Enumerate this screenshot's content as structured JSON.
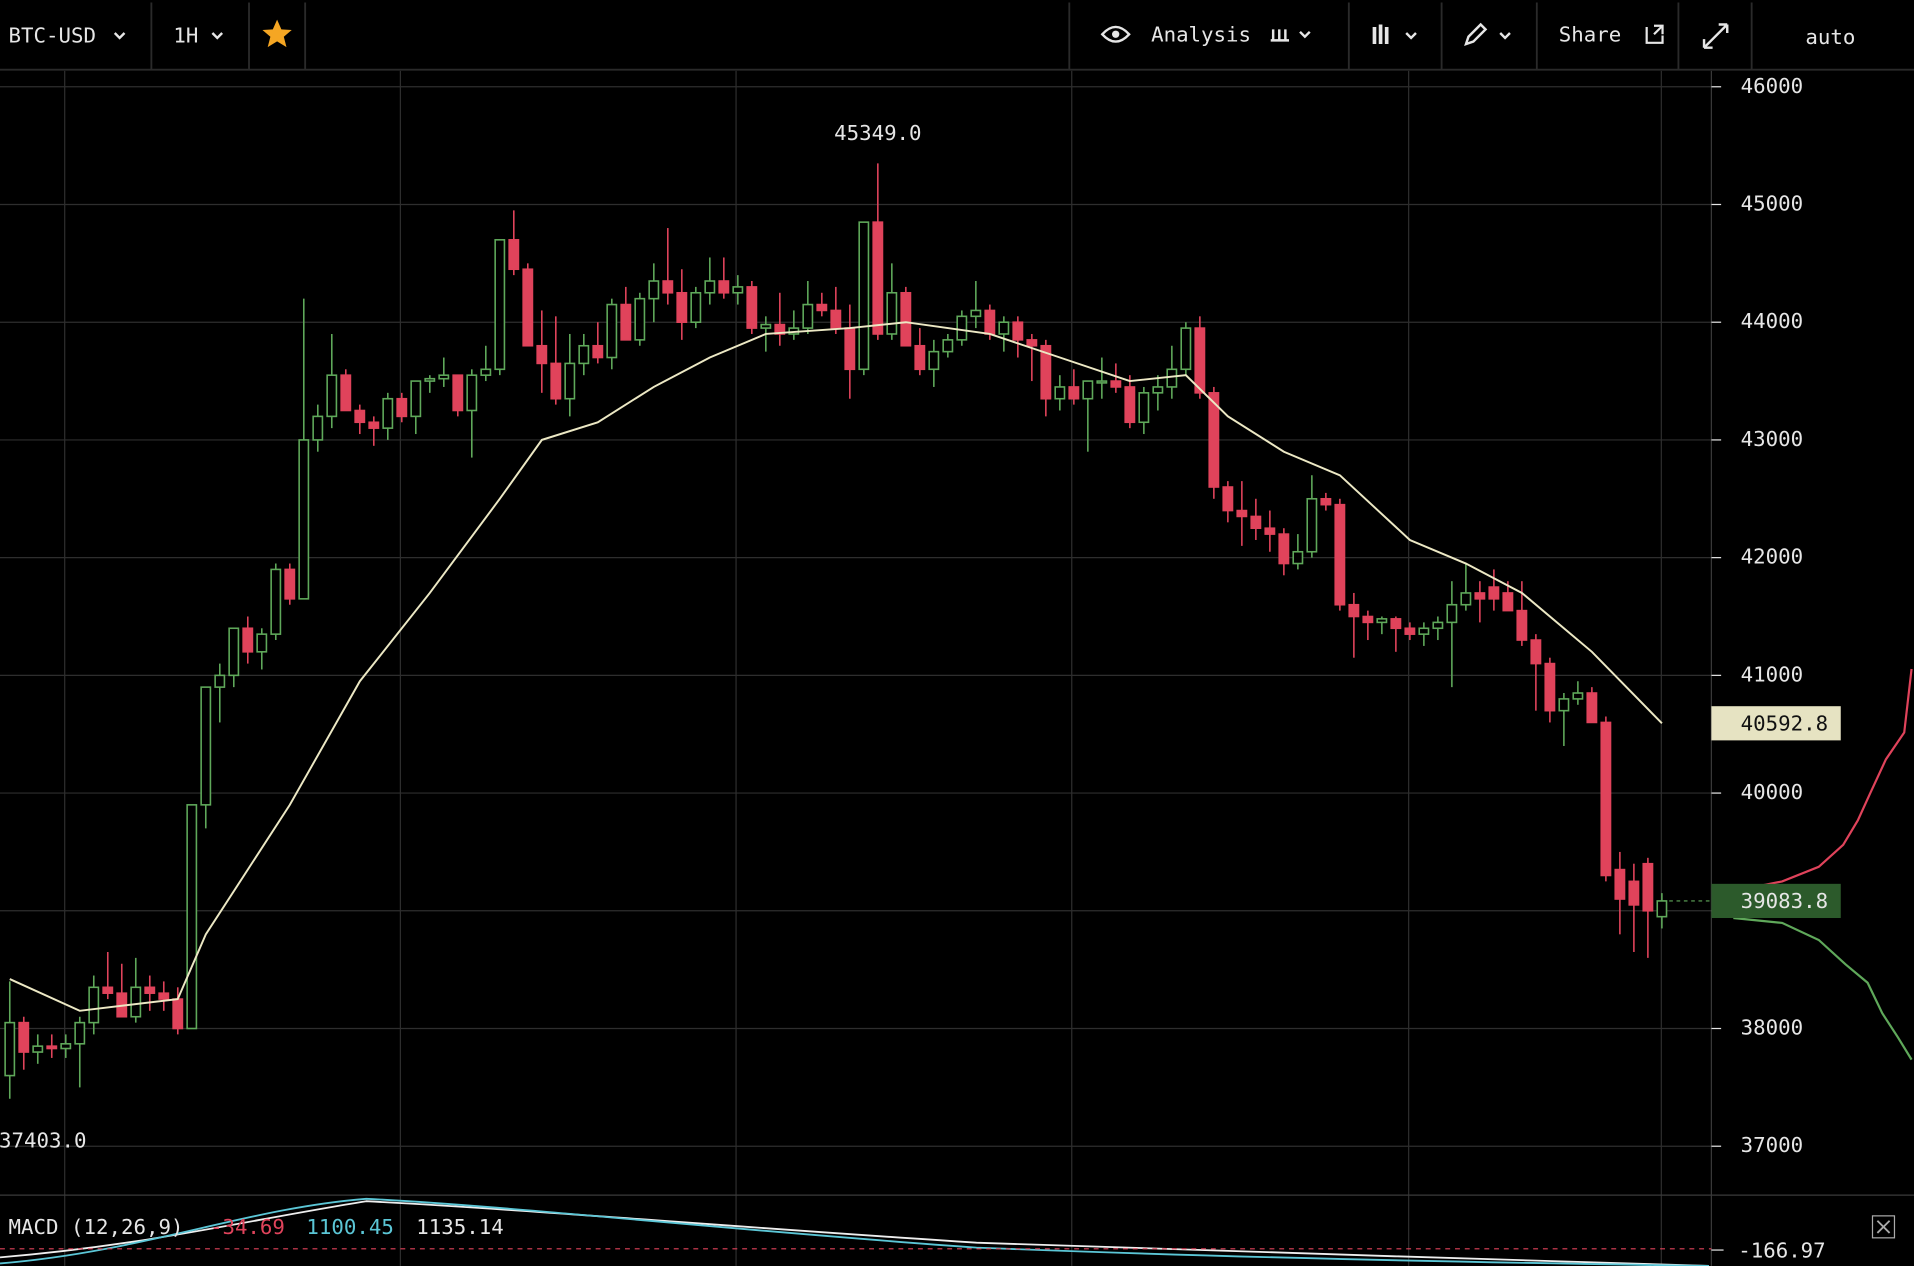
{
  "toolbar": {
    "symbol": "BTC-USD",
    "interval": "1H",
    "analysis": "Analysis",
    "share": "Share",
    "scale": "auto"
  },
  "chart_data": {
    "type": "candlestick",
    "ylim": [
      36595,
      46135
    ],
    "yticks": [
      37000,
      38000,
      39000,
      40000,
      41000,
      42000,
      43000,
      44000,
      45000,
      46000
    ],
    "grid": true,
    "up_color": "#5fa85a",
    "down_color": "#e0435b",
    "ma_color": "#ece8c4",
    "high_label": "45349.0",
    "low_label": "37403.0",
    "candles": [
      [
        37600,
        38400,
        37403,
        38050
      ],
      [
        38050,
        38100,
        37650,
        37800
      ],
      [
        37800,
        37950,
        37700,
        37850
      ],
      [
        37850,
        37950,
        37750,
        37830
      ],
      [
        37830,
        37950,
        37750,
        37870
      ],
      [
        37870,
        38100,
        37500,
        38050
      ],
      [
        38050,
        38450,
        37950,
        38350
      ],
      [
        38350,
        38650,
        38250,
        38300
      ],
      [
        38300,
        38550,
        38100,
        38100
      ],
      [
        38100,
        38600,
        38050,
        38350
      ],
      [
        38350,
        38450,
        38150,
        38300
      ],
      [
        38300,
        38400,
        38150,
        38250
      ],
      [
        38250,
        38350,
        37950,
        38000
      ],
      [
        38000,
        39900,
        38000,
        39900
      ],
      [
        39900,
        40900,
        39700,
        40900
      ],
      [
        40900,
        41100,
        40600,
        41000
      ],
      [
        41000,
        41400,
        40900,
        41400
      ],
      [
        41400,
        41500,
        41100,
        41200
      ],
      [
        41200,
        41400,
        41050,
        41350
      ],
      [
        41350,
        41950,
        41300,
        41900
      ],
      [
        41900,
        41950,
        41600,
        41650
      ],
      [
        41650,
        44200,
        41650,
        43000
      ],
      [
        43000,
        43300,
        42900,
        43200
      ],
      [
        43200,
        43900,
        43100,
        43550
      ],
      [
        43550,
        43600,
        43250,
        43250
      ],
      [
        43250,
        43300,
        43050,
        43150
      ],
      [
        43150,
        43200,
        42950,
        43100
      ],
      [
        43100,
        43400,
        43000,
        43350
      ],
      [
        43350,
        43400,
        43150,
        43200
      ],
      [
        43200,
        43500,
        43050,
        43500
      ],
      [
        43500,
        43550,
        43400,
        43520
      ],
      [
        43520,
        43700,
        43450,
        43550
      ],
      [
        43550,
        43550,
        43200,
        43250
      ],
      [
        43250,
        43600,
        42850,
        43550
      ],
      [
        43550,
        43800,
        43500,
        43600
      ],
      [
        43600,
        44700,
        43550,
        44700
      ],
      [
        44700,
        44950,
        44400,
        44450
      ],
      [
        44450,
        44500,
        43800,
        43800
      ],
      [
        43800,
        44100,
        43400,
        43650
      ],
      [
        43650,
        44050,
        43300,
        43350
      ],
      [
        43350,
        43900,
        43200,
        43650
      ],
      [
        43650,
        43900,
        43550,
        43800
      ],
      [
        43800,
        44000,
        43650,
        43700
      ],
      [
        43700,
        44200,
        43600,
        44150
      ],
      [
        44150,
        44300,
        43850,
        43850
      ],
      [
        43850,
        44250,
        43800,
        44200
      ],
      [
        44200,
        44500,
        44000,
        44350
      ],
      [
        44350,
        44800,
        44150,
        44250
      ],
      [
        44250,
        44450,
        43850,
        44000
      ],
      [
        44000,
        44300,
        43950,
        44250
      ],
      [
        44250,
        44550,
        44150,
        44350
      ],
      [
        44350,
        44550,
        44200,
        44250
      ],
      [
        44250,
        44400,
        44150,
        44300
      ],
      [
        44300,
        44350,
        43900,
        43950
      ],
      [
        43950,
        44050,
        43750,
        43980
      ],
      [
        43980,
        44250,
        43800,
        43900
      ],
      [
        43900,
        44100,
        43850,
        43950
      ],
      [
        43950,
        44350,
        43900,
        44150
      ],
      [
        44150,
        44250,
        44050,
        44100
      ],
      [
        44100,
        44300,
        43900,
        43950
      ],
      [
        43950,
        44150,
        43350,
        43600
      ],
      [
        43600,
        44850,
        43550,
        44850
      ],
      [
        44850,
        45349,
        43850,
        43900
      ],
      [
        43900,
        44500,
        43850,
        44250
      ],
      [
        44250,
        44300,
        43800,
        43800
      ],
      [
        43800,
        43950,
        43550,
        43600
      ],
      [
        43600,
        43850,
        43450,
        43750
      ],
      [
        43750,
        43900,
        43700,
        43850
      ],
      [
        43850,
        44100,
        43800,
        44050
      ],
      [
        44050,
        44350,
        43950,
        44100
      ],
      [
        44100,
        44150,
        43850,
        43900
      ],
      [
        43900,
        44050,
        43750,
        44000
      ],
      [
        44000,
        44050,
        43700,
        43850
      ],
      [
        43850,
        43900,
        43500,
        43800
      ],
      [
        43800,
        43850,
        43200,
        43350
      ],
      [
        43350,
        43550,
        43250,
        43450
      ],
      [
        43450,
        43600,
        43300,
        43350
      ],
      [
        43350,
        43500,
        42900,
        43500
      ],
      [
        43500,
        43700,
        43350,
        43500
      ],
      [
        43500,
        43650,
        43400,
        43450
      ],
      [
        43450,
        43550,
        43100,
        43150
      ],
      [
        43150,
        43450,
        43050,
        43400
      ],
      [
        43400,
        43550,
        43250,
        43450
      ],
      [
        43450,
        43800,
        43350,
        43600
      ],
      [
        43600,
        44000,
        43550,
        43950
      ],
      [
        43950,
        44050,
        43350,
        43400
      ],
      [
        43400,
        43450,
        42500,
        42600
      ],
      [
        42600,
        42650,
        42300,
        42400
      ],
      [
        42400,
        42650,
        42100,
        42350
      ],
      [
        42350,
        42500,
        42150,
        42250
      ],
      [
        42250,
        42400,
        42050,
        42200
      ],
      [
        42200,
        42250,
        41850,
        41950
      ],
      [
        41950,
        42200,
        41900,
        42050
      ],
      [
        42050,
        42700,
        42000,
        42500
      ],
      [
        42500,
        42550,
        42400,
        42450
      ],
      [
        42450,
        42500,
        41550,
        41600
      ],
      [
        41600,
        41700,
        41150,
        41500
      ],
      [
        41500,
        41550,
        41300,
        41450
      ],
      [
        41450,
        41500,
        41350,
        41480
      ],
      [
        41480,
        41500,
        41200,
        41400
      ],
      [
        41400,
        41450,
        41300,
        41350
      ],
      [
        41350,
        41450,
        41250,
        41400
      ],
      [
        41400,
        41500,
        41300,
        41450
      ],
      [
        41450,
        41800,
        40900,
        41600
      ],
      [
        41600,
        41950,
        41550,
        41700
      ],
      [
        41700,
        41800,
        41450,
        41650
      ],
      [
        41750,
        41900,
        41550,
        41650
      ],
      [
        41700,
        41800,
        41550,
        41550
      ],
      [
        41550,
        41800,
        41250,
        41300
      ],
      [
        41300,
        41350,
        40700,
        41100
      ],
      [
        41100,
        41150,
        40600,
        40700
      ],
      [
        40700,
        40850,
        40400,
        40800
      ],
      [
        40800,
        40950,
        40750,
        40850
      ],
      [
        40850,
        40900,
        40600,
        40600
      ],
      [
        40600,
        40650,
        39250,
        39300
      ],
      [
        39350,
        39500,
        38800,
        39100
      ],
      [
        39250,
        39400,
        38650,
        39050
      ],
      [
        39400,
        39450,
        38600,
        39000
      ],
      [
        38950,
        39150,
        38850,
        39083.8
      ]
    ],
    "ma": {
      "x": [
        0,
        5,
        12,
        14,
        20,
        25,
        30,
        35,
        38,
        42,
        46,
        50,
        54,
        60,
        64,
        70,
        75,
        80,
        84,
        87,
        91,
        95,
        100,
        104,
        108,
        113,
        118
      ],
      "values": [
        38420,
        38150,
        38250,
        38800,
        39900,
        40950,
        41700,
        42500,
        43000,
        43150,
        43450,
        43700,
        43900,
        43950,
        44000,
        43900,
        43700,
        43500,
        43550,
        43200,
        42900,
        42700,
        42150,
        41950,
        41700,
        41200,
        40592.8
      ]
    }
  },
  "macd": {
    "label": "MACD (12,26,9)",
    "values": [
      -34.69,
      1100.45,
      1135.14
    ],
    "axis_tick": -166.97
  }
}
